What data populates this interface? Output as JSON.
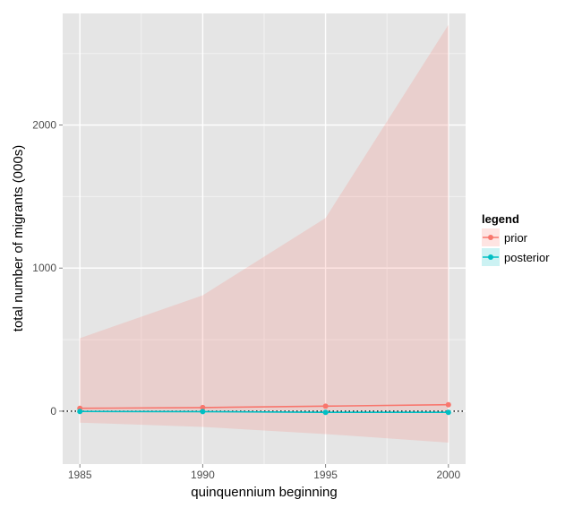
{
  "chart_data": {
    "type": "line",
    "title": "",
    "xlabel": "quinquennium beginning",
    "ylabel": "total number of migrants (000s)",
    "x": [
      1985,
      1990,
      1995,
      2000
    ],
    "x_ticks": [
      "1985",
      "1990",
      "1995",
      "2000"
    ],
    "y_ticks": [
      "0",
      "1000",
      "2000"
    ],
    "xlim": [
      1984.3,
      2000.7
    ],
    "ylim": [
      -370,
      2780
    ],
    "grid": true,
    "reference_line": {
      "y": 0,
      "style": "dotted"
    },
    "legend": {
      "title": "legend",
      "position": "right"
    },
    "series": [
      {
        "name": "prior",
        "color": "#F8766D",
        "values": [
          20,
          25,
          35,
          45
        ],
        "band_upper": [
          510,
          810,
          1350,
          2700
        ],
        "band_lower": [
          -80,
          -110,
          -160,
          -220
        ]
      },
      {
        "name": "posterior",
        "color": "#00BFC4",
        "values": [
          -2,
          -3,
          -8,
          -8
        ],
        "band_upper": [
          2,
          2,
          -3,
          -3
        ],
        "band_lower": [
          -6,
          -8,
          -13,
          -13
        ]
      }
    ]
  }
}
